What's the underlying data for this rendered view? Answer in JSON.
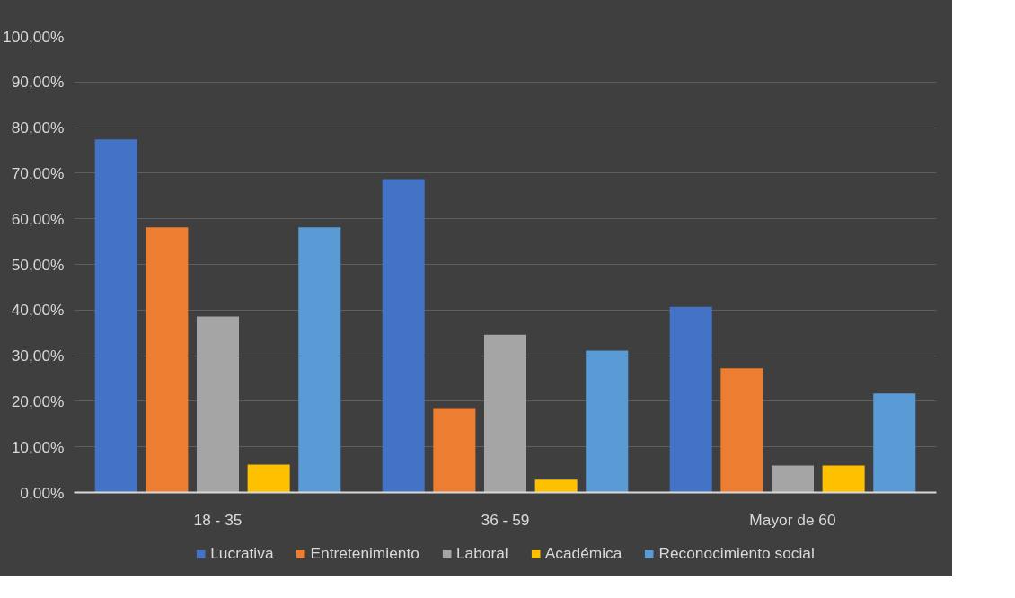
{
  "chart_data": {
    "type": "bar",
    "categories": [
      "18 - 35",
      "36 - 59",
      "Mayor de 60"
    ],
    "series": [
      {
        "name": "Lucrativa",
        "color": "#4472c4",
        "values": [
          77.4,
          68.7,
          40.7
        ]
      },
      {
        "name": "Entretenimiento",
        "color": "#ed7d31",
        "values": [
          58.1,
          18.5,
          27.2
        ]
      },
      {
        "name": "Laboral",
        "color": "#a5a5a5",
        "values": [
          38.6,
          34.6,
          5.9
        ]
      },
      {
        "name": "Académica",
        "color": "#ffc000",
        "values": [
          6.1,
          2.8,
          5.9
        ]
      },
      {
        "name": "Reconocimiento social",
        "color": "#5b9bd5",
        "values": [
          58.1,
          31.1,
          21.7
        ]
      }
    ],
    "ylim": [
      0,
      100
    ],
    "yticks": [
      {
        "value": 0,
        "label": "0,00%"
      },
      {
        "value": 10,
        "label": "10,00%"
      },
      {
        "value": 20,
        "label": "20,00%"
      },
      {
        "value": 30,
        "label": "30,00%"
      },
      {
        "value": 40,
        "label": "40,00%"
      },
      {
        "value": 50,
        "label": "50,00%"
      },
      {
        "value": 60,
        "label": "60,00%"
      },
      {
        "value": 70,
        "label": "70,00%"
      },
      {
        "value": 80,
        "label": "80,00%"
      },
      {
        "value": 90,
        "label": "90,00%"
      },
      {
        "value": 100,
        "label": "100,00%"
      }
    ],
    "grid": "y",
    "legend": "bottom"
  }
}
